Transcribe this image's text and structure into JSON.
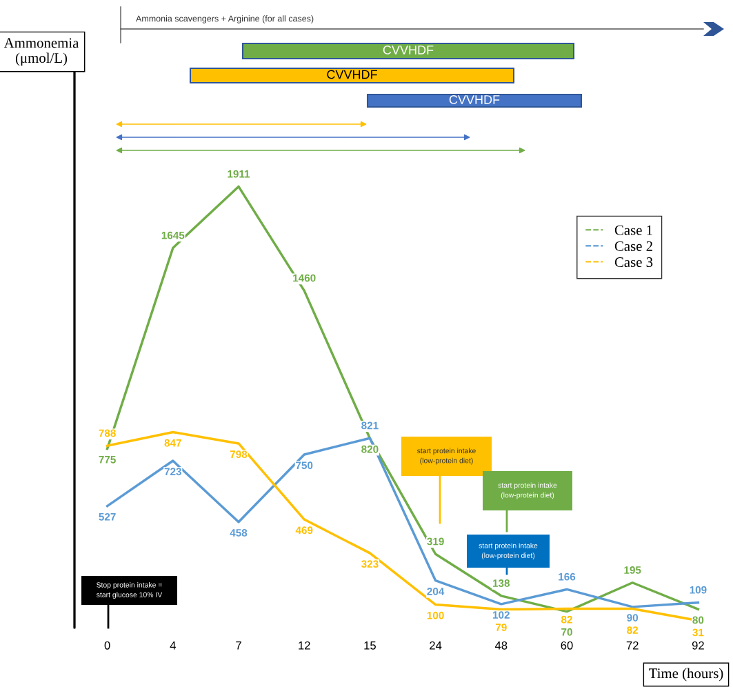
{
  "chart_data": {
    "type": "line",
    "xlabel": "Time (hours)",
    "ylabel": "Ammonemia\n(μmol/L)",
    "categories": [
      "0",
      "4",
      "7",
      "12",
      "15",
      "24",
      "48",
      "60",
      "72",
      "92"
    ],
    "ylim": [
      0,
      2480
    ],
    "tick_labels": "x",
    "data_labels": true,
    "legend": "top right",
    "grid": false,
    "line_style": "solid",
    "series": [
      {
        "name": "Case 1",
        "color": "#70ad47",
        "values": [
          775,
          1645,
          1911,
          1460,
          820,
          319,
          138,
          70,
          195,
          80
        ]
      },
      {
        "name": "Case 2",
        "color": "#5b9bd5",
        "values": [
          527,
          723,
          458,
          750,
          821,
          204,
          102,
          166,
          90,
          109
        ]
      },
      {
        "name": "Case 3",
        "color": "#ffc000",
        "values": [
          788,
          847,
          798,
          469,
          323,
          100,
          79,
          82,
          82,
          31
        ]
      }
    ],
    "annotations": [
      "Ammonia scavengers + Arginine (for all cases)",
      "CVVHDF",
      "CVVHDF",
      "CVVHDF",
      "start protein intake\n(low-protein diet)",
      "start protein intake\n(low-protein diet)",
      "start protein intake\n(low-protein diet)",
      "Stop protein intake =\nstart glucose 10% IV"
    ]
  }
}
